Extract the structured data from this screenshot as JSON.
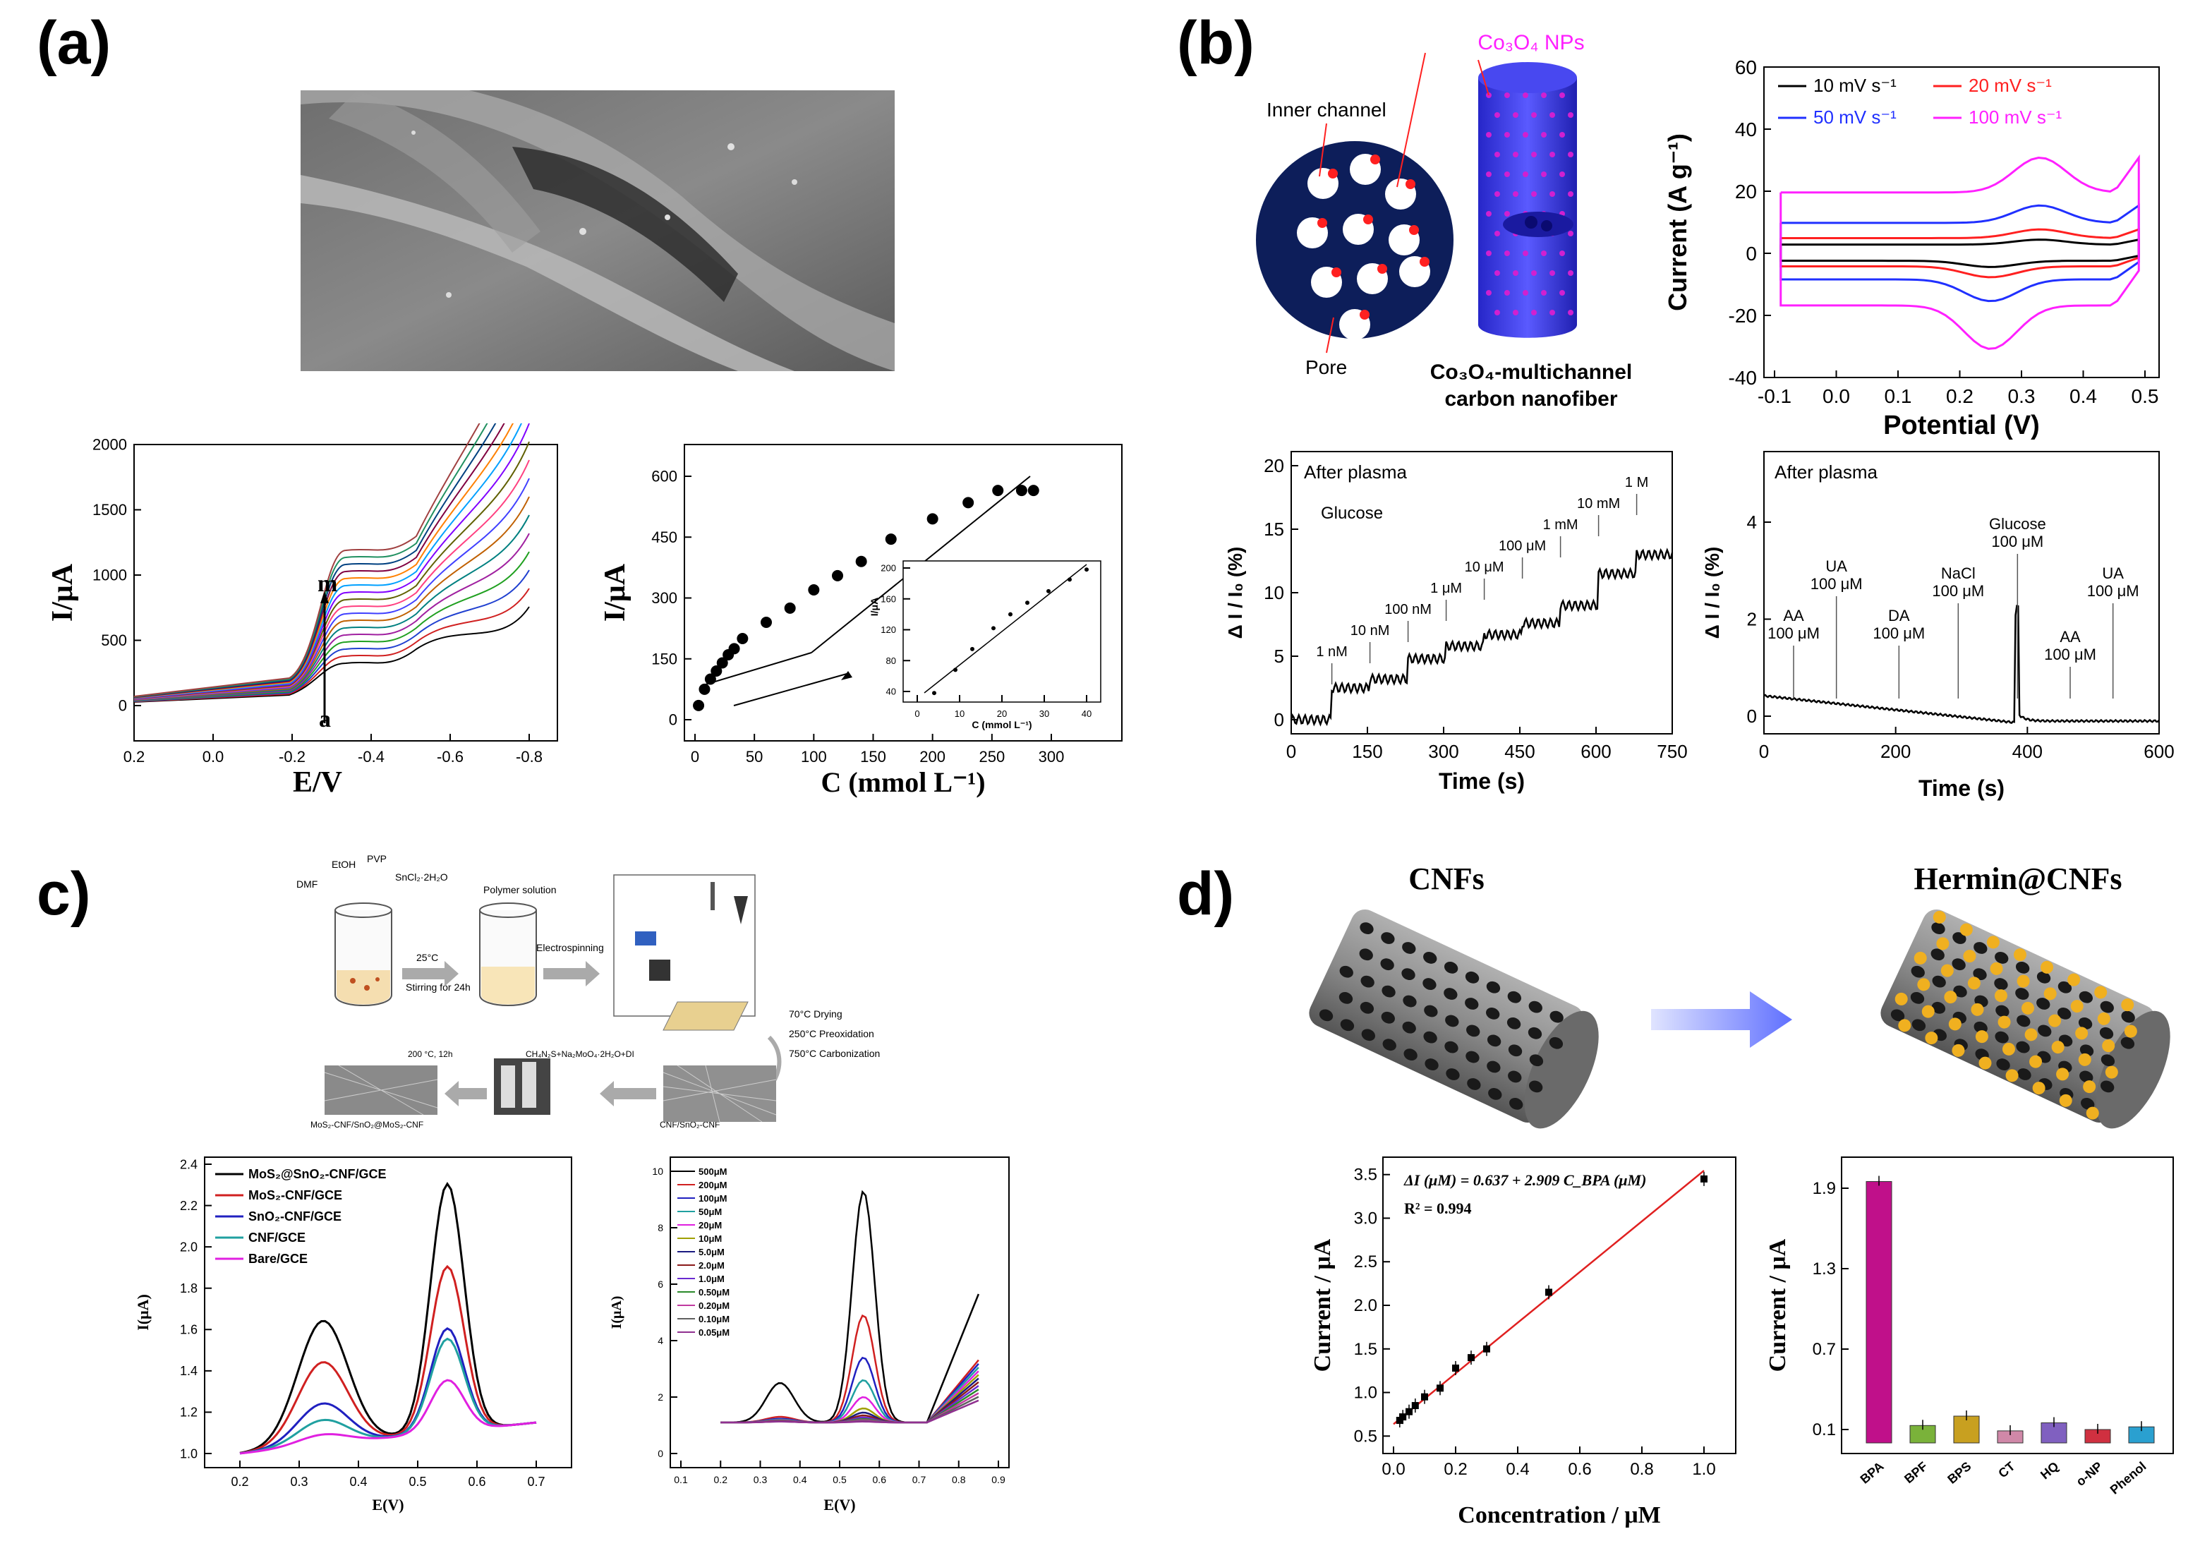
{
  "labels": {
    "a": "(a)",
    "b": "(b)",
    "c": "c)",
    "d": "d)"
  },
  "a_cv": {
    "ylabel": "I/μA",
    "xlabel": "E/V",
    "yticks": [
      "0",
      "500",
      "1000",
      "1500",
      "2000"
    ],
    "xticks": [
      "0.2",
      "0.0",
      "-0.2",
      "-0.4",
      "-0.6",
      "-0.8"
    ],
    "arrow_top": "m",
    "arrow_bottom": "a"
  },
  "a_cal": {
    "ylabel": "I/μA",
    "xlabel": "C (mmol L⁻¹)",
    "yticks": [
      "0",
      "150",
      "300",
      "450",
      "600"
    ],
    "xticks": [
      "0",
      "50",
      "100",
      "150",
      "200",
      "250",
      "300"
    ],
    "inset_ylabel": "I/μA",
    "inset_xlabel": "C (mmol L⁻¹)",
    "inset_yticks": [
      "40",
      "80",
      "120",
      "160",
      "200"
    ],
    "inset_xticks": [
      "0",
      "10",
      "20",
      "30",
      "40"
    ]
  },
  "b_diagram": {
    "np_label": "Co₃O₄ NPs",
    "inner_label": "Inner channel",
    "pore_label": "Pore",
    "fiber_caption_1": "Co₃O₄-multichannel",
    "fiber_caption_2": "carbon nanofiber"
  },
  "b_cv": {
    "ylabel": "Current (A g⁻¹)",
    "xlabel": "Potential (V)",
    "yticks": [
      "-40",
      "-20",
      "0",
      "20",
      "40",
      "60"
    ],
    "xticks": [
      "-0.1",
      "0.0",
      "0.1",
      "0.2",
      "0.3",
      "0.4",
      "0.5"
    ],
    "legend": [
      "10 mV s⁻¹",
      "20 mV s⁻¹",
      "50 mV s⁻¹",
      "100 mV s⁻¹"
    ],
    "colors": [
      "#000000",
      "#ff2020",
      "#2030ff",
      "#ff20ff"
    ]
  },
  "b_time1": {
    "ylabel": "Δ I / I₀ (%)",
    "xlabel": "Time (s)",
    "title": "After plasma",
    "analyte": "Glucose",
    "yticks": [
      "0",
      "5",
      "10",
      "15",
      "20"
    ],
    "xticks": [
      "0",
      "150",
      "300",
      "450",
      "600",
      "750"
    ],
    "steps": [
      "1 nM",
      "10 nM",
      "100 nM",
      "1 μM",
      "10 μM",
      "100 μM",
      "1 mM",
      "10 mM",
      "1 M"
    ]
  },
  "b_time2": {
    "ylabel": "Δ I / I₀ (%)",
    "xlabel": "Time (s)",
    "title": "After plasma",
    "yticks": [
      "0",
      "2",
      "4"
    ],
    "xticks": [
      "0",
      "200",
      "400",
      "600"
    ],
    "annotations": [
      {
        "name": "AA",
        "conc": "100 μM"
      },
      {
        "name": "UA",
        "conc": "100 μM"
      },
      {
        "name": "DA",
        "conc": "100 μM"
      },
      {
        "name": "NaCl",
        "conc": "100 μM"
      },
      {
        "name": "Glucose",
        "conc": "100 μM"
      },
      {
        "name": "AA",
        "conc": "100 μM"
      },
      {
        "name": "UA",
        "conc": "100 μM"
      }
    ]
  },
  "c_scheme": {
    "dmf": "DMF",
    "etoh": "EtOH",
    "pvp": "PVP",
    "sncl": "SnCl₂·2H₂O",
    "temp": "25°C",
    "stir": "Stirring for 24h",
    "polymer": "Polymer solution",
    "electro": "Electrospinning",
    "drying": "70°C Drying",
    "preox": "250°C Preoxidation",
    "carb": "750°C Carbonization",
    "reagents": "CH₄N₂S+Na₂MoO₄·2H₂O+DI",
    "hydro": "200 °C, 12h",
    "prod_left": "MoS₂-CNF/SnO₂@MoS₂-CNF",
    "prod_right": "CNF/SnO₂-CNF"
  },
  "c_dpv1": {
    "ylabel": "I(μA)",
    "xlabel": "E(V)",
    "yticks": [
      "1.0",
      "1.2",
      "1.4",
      "1.6",
      "1.8",
      "2.0",
      "2.2",
      "2.4"
    ],
    "xticks": [
      "0.2",
      "0.3",
      "0.4",
      "0.5",
      "0.6",
      "0.7"
    ],
    "legend": [
      "MoS₂@SnO₂-CNF/GCE",
      "MoS₂-CNF/GCE",
      "SnO₂-CNF/GCE",
      "CNF/GCE",
      "Bare/GCE"
    ],
    "colors": [
      "#000000",
      "#d02020",
      "#2020c0",
      "#20a0a0",
      "#e020e0"
    ]
  },
  "c_dpv2": {
    "ylabel": "I(μA)",
    "xlabel": "E(V)",
    "yticks": [
      "0",
      "2",
      "4",
      "6",
      "8",
      "10"
    ],
    "xticks": [
      "0.1",
      "0.2",
      "0.3",
      "0.4",
      "0.5",
      "0.6",
      "0.7",
      "0.8",
      "0.9"
    ],
    "legend": [
      "500μM",
      "200μM",
      "100μM",
      "50μM",
      "20μM",
      "10μM",
      "5.0μM",
      "2.0μM",
      "1.0μM",
      "0.50μM",
      "0.20μM",
      "0.10μM",
      "0.05μM"
    ],
    "colors": [
      "#000000",
      "#d02020",
      "#2020c0",
      "#20a0a0",
      "#e020e0",
      "#a0a000",
      "#1a1a80",
      "#8a1a1a",
      "#6a2ad0",
      "#2a8a2a",
      "#c03aa0",
      "#606060",
      "#903090"
    ]
  },
  "d_illus": {
    "left_title": "CNFs",
    "right_title": "Hermin@CNFs"
  },
  "d_fit": {
    "ylabel": "Current / μA",
    "xlabel": "Concentration / μM",
    "eq": "ΔI (μM) = 0.637 + 2.909 C_BPA (μM)",
    "r2": "R² = 0.994",
    "yticks": [
      "0.5",
      "1.0",
      "1.5",
      "2.0",
      "2.5",
      "3.0",
      "3.5"
    ],
    "xticks": [
      "0.0",
      "0.2",
      "0.4",
      "0.6",
      "0.8",
      "1.0"
    ]
  },
  "d_bar": {
    "ylabel": "Current / μA",
    "yticks": [
      "0.1",
      "0.7",
      "1.3",
      "1.9"
    ],
    "categories": [
      "BPA",
      "BPF",
      "BPS",
      "CT",
      "HQ",
      "o-NP",
      "Phenol"
    ]
  },
  "chart_data": [
    {
      "type": "line",
      "id": "b_cv",
      "xlabel": "Potential (V)",
      "ylabel": "Current (A g⁻¹)",
      "xlim": [
        -0.1,
        0.5
      ],
      "ylim": [
        -40,
        60
      ],
      "series": [
        {
          "name": "10 mV s⁻¹"
        },
        {
          "name": "20 mV s⁻¹"
        },
        {
          "name": "50 mV s⁻¹"
        },
        {
          "name": "100 mV s⁻¹"
        }
      ]
    },
    {
      "type": "scatter",
      "id": "a_cal",
      "xlabel": "C (mmol L⁻¹)",
      "ylabel": "I/μA",
      "xlim": [
        0,
        340
      ],
      "ylim": [
        0,
        650
      ],
      "x": [
        3,
        8,
        13,
        18,
        23,
        28,
        33,
        40,
        60,
        80,
        100,
        120,
        140,
        165,
        200,
        230,
        255,
        275,
        285
      ],
      "y": [
        35,
        75,
        100,
        120,
        140,
        160,
        175,
        200,
        240,
        275,
        320,
        355,
        390,
        445,
        495,
        535,
        565,
        565,
        565
      ]
    },
    {
      "type": "scatter",
      "id": "d_fit",
      "xlabel": "Concentration / μM",
      "ylabel": "Current / μA",
      "xlim": [
        0,
        1.05
      ],
      "ylim": [
        0.5,
        3.7
      ],
      "x": [
        0.02,
        0.03,
        0.05,
        0.07,
        0.1,
        0.15,
        0.2,
        0.25,
        0.3,
        0.5,
        1.0
      ],
      "y": [
        0.68,
        0.72,
        0.78,
        0.85,
        0.95,
        1.05,
        1.28,
        1.4,
        1.5,
        2.15,
        3.45
      ]
    },
    {
      "type": "bar",
      "id": "d_bar",
      "ylabel": "Current / μA",
      "ylim": [
        0,
        2.1
      ],
      "categories": [
        "BPA",
        "BPF",
        "BPS",
        "CT",
        "HQ",
        "o-NP",
        "Phenol"
      ],
      "values": [
        1.95,
        0.13,
        0.2,
        0.09,
        0.15,
        0.1,
        0.12
      ],
      "colors": [
        "#c0108a",
        "#7ab23a",
        "#c8a020",
        "#d088a8",
        "#8060c0",
        "#d03040",
        "#2aa0d0"
      ]
    }
  ]
}
